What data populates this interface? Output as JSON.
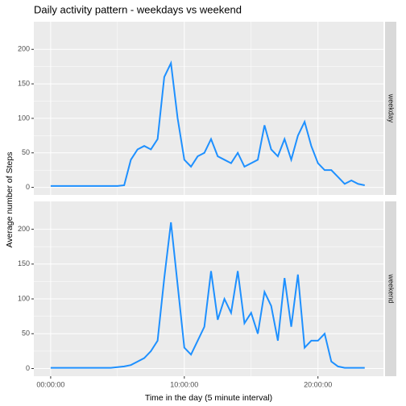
{
  "chart_data": {
    "type": "line",
    "title": "Daily activity pattern - weekdays vs weekend",
    "xlabel": "Time in the day (5 minute interval)",
    "ylabel": "Average number of Steps",
    "color": "#1e90ff",
    "grid": true,
    "x": [
      0,
      0.5,
      1,
      1.5,
      2,
      2.5,
      3,
      3.5,
      4,
      4.5,
      5,
      5.5,
      6,
      6.5,
      7,
      7.5,
      8,
      8.5,
      9,
      9.5,
      10,
      10.5,
      11,
      11.5,
      12,
      12.5,
      13,
      13.5,
      14,
      14.5,
      15,
      15.5,
      16,
      16.5,
      17,
      17.5,
      18,
      18.5,
      19,
      19.5,
      20,
      20.5,
      21,
      21.5,
      22,
      22.5,
      23,
      23.5
    ],
    "series": [
      {
        "name": "weekday",
        "values": [
          2,
          2,
          2,
          2,
          2,
          2,
          2,
          2,
          2,
          2,
          2,
          3,
          40,
          55,
          60,
          55,
          70,
          160,
          180,
          100,
          40,
          30,
          45,
          50,
          70,
          45,
          40,
          35,
          50,
          30,
          35,
          40,
          90,
          55,
          45,
          70,
          40,
          75,
          95,
          60,
          35,
          25,
          25,
          15,
          5,
          10,
          5,
          3
        ]
      },
      {
        "name": "weekend",
        "values": [
          1,
          1,
          1,
          1,
          1,
          1,
          1,
          1,
          1,
          1,
          2,
          3,
          5,
          10,
          15,
          25,
          40,
          130,
          210,
          120,
          30,
          20,
          40,
          60,
          140,
          70,
          100,
          80,
          140,
          65,
          80,
          50,
          110,
          90,
          40,
          130,
          60,
          135,
          30,
          40,
          40,
          50,
          10,
          3,
          1,
          1,
          1,
          1
        ]
      }
    ],
    "xlim": [
      -1.26,
      24.9
    ],
    "xticks": [
      {
        "value": 0,
        "label": "00:00:00"
      },
      {
        "value": 10,
        "label": "10:00:00"
      },
      {
        "value": 20,
        "label": "20:00:00"
      }
    ],
    "ylim": [
      -11,
      240
    ],
    "yticks": [
      0,
      50,
      100,
      150,
      200
    ]
  }
}
